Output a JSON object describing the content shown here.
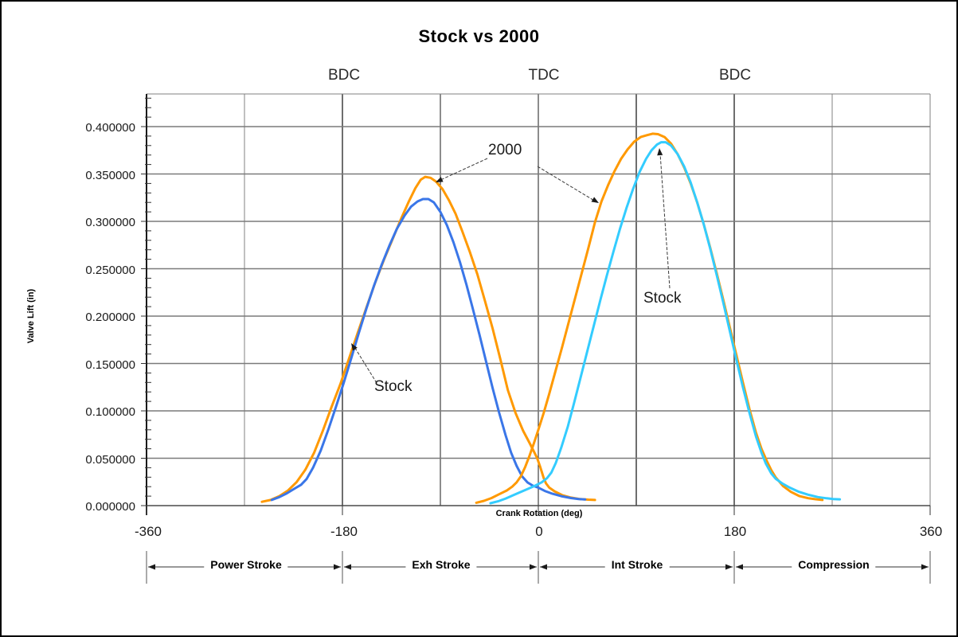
{
  "title": "Stock vs 2000",
  "top_markers": [
    {
      "label": "BDC",
      "deg": -180
    },
    {
      "label": "TDC",
      "deg": 0
    },
    {
      "label": "BDC",
      "deg": 180
    }
  ],
  "y_axis": {
    "title": "Valve Lift (in)",
    "tick_labels": [
      "0.000000",
      "0.050000",
      "0.100000",
      "0.150000",
      "0.200000",
      "0.250000",
      "0.300000",
      "0.350000",
      "0.400000"
    ],
    "major_step": 0.05,
    "minor_step": 0.01
  },
  "x_axis": {
    "title": "Crank Rotation (deg)",
    "tick_labels": [
      "-360",
      "-180",
      "0",
      "180",
      "360"
    ],
    "tick_values": [
      -360,
      -180,
      0,
      180,
      360
    ]
  },
  "stroke_bands": [
    {
      "label": "Power Stroke",
      "from": -360,
      "to": -180
    },
    {
      "label": "Exh Stroke",
      "from": -180,
      "to": 0
    },
    {
      "label": "Int Stroke",
      "from": 0,
      "to": 180
    },
    {
      "label": "Compression",
      "from": 180,
      "to": 360
    }
  ],
  "annotations": {
    "label_2000": "2000",
    "label_stock_exhaust": "Stock",
    "label_stock_intake": "Stock"
  },
  "colors": {
    "series_2000": "#FF9900",
    "series_stock_exhaust": "#3A76E8",
    "series_stock_intake": "#33CCFF",
    "gridline": "#808080",
    "gridline_dark": "#1a1a1a",
    "axis": "#000000",
    "arrow": "#3a3a3a"
  },
  "chart_data": {
    "type": "line",
    "title": "Stock vs 2000",
    "xlabel": "Crank Rotation (deg)",
    "ylabel": "Valve Lift (in)",
    "xlim": [
      -360,
      360
    ],
    "ylim": [
      0,
      0.43
    ],
    "grid": true,
    "x_major_ticks": [
      -360,
      -180,
      0,
      180,
      360
    ],
    "x_gridlines_every_deg": 90,
    "y_gridlines_every": 0.05,
    "series": [
      {
        "name": "2000 (exhaust lobe)",
        "color": "#FF9900",
        "points": [
          [
            -254,
            0.004
          ],
          [
            -246,
            0.006
          ],
          [
            -238,
            0.01
          ],
          [
            -230,
            0.016
          ],
          [
            -222,
            0.025
          ],
          [
            -214,
            0.038
          ],
          [
            -206,
            0.056
          ],
          [
            -198,
            0.079
          ],
          [
            -190,
            0.104
          ],
          [
            -182,
            0.128
          ],
          [
            -174,
            0.155
          ],
          [
            -166,
            0.182
          ],
          [
            -158,
            0.209
          ],
          [
            -150,
            0.235
          ],
          [
            -142,
            0.259
          ],
          [
            -134,
            0.281
          ],
          [
            -126,
            0.303
          ],
          [
            -119,
            0.321
          ],
          [
            -113,
            0.335
          ],
          [
            -108,
            0.344
          ],
          [
            -104,
            0.347
          ],
          [
            -99,
            0.346
          ],
          [
            -94,
            0.342
          ],
          [
            -88,
            0.334
          ],
          [
            -82,
            0.322
          ],
          [
            -76,
            0.308
          ],
          [
            -70,
            0.29
          ],
          [
            -63,
            0.268
          ],
          [
            -56,
            0.244
          ],
          [
            -49,
            0.216
          ],
          [
            -42,
            0.187
          ],
          [
            -35,
            0.155
          ],
          [
            -28,
            0.122
          ],
          [
            -21,
            0.098
          ],
          [
            -14,
            0.079
          ],
          [
            -8,
            0.066
          ],
          [
            -4,
            0.057
          ],
          [
            -1,
            0.05
          ],
          [
            2,
            0.04
          ],
          [
            5,
            0.029
          ],
          [
            7,
            0.0235
          ],
          [
            10,
            0.019
          ],
          [
            15,
            0.015
          ],
          [
            22,
            0.011
          ],
          [
            30,
            0.0085
          ],
          [
            38,
            0.007
          ],
          [
            46,
            0.0063
          ],
          [
            52,
            0.006
          ]
        ]
      },
      {
        "name": "Stock (exhaust lobe)",
        "color": "#3A76E8",
        "points": [
          [
            -245,
            0.006
          ],
          [
            -238,
            0.009
          ],
          [
            -231,
            0.013
          ],
          [
            -224,
            0.018
          ],
          [
            -218,
            0.022
          ],
          [
            -213,
            0.028
          ],
          [
            -207,
            0.04
          ],
          [
            -200,
            0.058
          ],
          [
            -193,
            0.08
          ],
          [
            -186,
            0.104
          ],
          [
            -179,
            0.129
          ],
          [
            -172,
            0.155
          ],
          [
            -165,
            0.182
          ],
          [
            -158,
            0.208
          ],
          [
            -151,
            0.232
          ],
          [
            -144,
            0.254
          ],
          [
            -137,
            0.274
          ],
          [
            -130,
            0.292
          ],
          [
            -123,
            0.306
          ],
          [
            -117,
            0.3155
          ],
          [
            -111,
            0.321
          ],
          [
            -106,
            0.3235
          ],
          [
            -101,
            0.3235
          ],
          [
            -96,
            0.32
          ],
          [
            -90,
            0.31
          ],
          [
            -84,
            0.296
          ],
          [
            -78,
            0.278
          ],
          [
            -72,
            0.257
          ],
          [
            -66,
            0.233
          ],
          [
            -60,
            0.207
          ],
          [
            -54,
            0.18
          ],
          [
            -48,
            0.152
          ],
          [
            -42,
            0.124
          ],
          [
            -36,
            0.098
          ],
          [
            -30,
            0.074
          ],
          [
            -25,
            0.056
          ],
          [
            -20,
            0.042
          ],
          [
            -15,
            0.031
          ],
          [
            -10,
            0.0245
          ],
          [
            -5,
            0.021
          ],
          [
            0,
            0.019
          ],
          [
            6,
            0.0155
          ],
          [
            13,
            0.0125
          ],
          [
            21,
            0.01
          ],
          [
            30,
            0.008
          ],
          [
            37,
            0.007
          ],
          [
            43,
            0.0065
          ]
        ]
      },
      {
        "name": "2000 (intake lobe)",
        "color": "#FF9900",
        "points": [
          [
            -57,
            0.003
          ],
          [
            -50,
            0.005
          ],
          [
            -43,
            0.008
          ],
          [
            -36,
            0.012
          ],
          [
            -29,
            0.016
          ],
          [
            -24,
            0.02
          ],
          [
            -20,
            0.0245
          ],
          [
            -16,
            0.031
          ],
          [
            -12,
            0.041
          ],
          [
            -8,
            0.053
          ],
          [
            -4,
            0.066
          ],
          [
            0,
            0.08
          ],
          [
            5,
            0.098
          ],
          [
            10,
            0.118
          ],
          [
            16,
            0.143
          ],
          [
            22,
            0.168
          ],
          [
            28,
            0.194
          ],
          [
            34,
            0.22
          ],
          [
            40,
            0.246
          ],
          [
            46,
            0.272
          ],
          [
            52,
            0.299
          ],
          [
            58,
            0.321
          ],
          [
            64,
            0.338
          ],
          [
            70,
            0.353
          ],
          [
            76,
            0.366
          ],
          [
            82,
            0.376
          ],
          [
            88,
            0.384
          ],
          [
            94,
            0.389
          ],
          [
            100,
            0.391
          ],
          [
            105,
            0.3925
          ],
          [
            110,
            0.392
          ],
          [
            116,
            0.389
          ],
          [
            122,
            0.382
          ],
          [
            128,
            0.371
          ],
          [
            134,
            0.357
          ],
          [
            140,
            0.34
          ],
          [
            146,
            0.32
          ],
          [
            152,
            0.297
          ],
          [
            158,
            0.272
          ],
          [
            164,
            0.245
          ],
          [
            170,
            0.217
          ],
          [
            176,
            0.188
          ],
          [
            182,
            0.159
          ],
          [
            188,
            0.13
          ],
          [
            194,
            0.102
          ],
          [
            200,
            0.077
          ],
          [
            205,
            0.06
          ],
          [
            210,
            0.047
          ],
          [
            214,
            0.0375
          ],
          [
            218,
            0.03
          ],
          [
            221,
            0.026
          ],
          [
            225,
            0.0205
          ],
          [
            232,
            0.0145
          ],
          [
            240,
            0.01
          ],
          [
            248,
            0.0078
          ],
          [
            255,
            0.0067
          ],
          [
            261,
            0.006
          ]
        ]
      },
      {
        "name": "Stock (intake lobe)",
        "color": "#33CCFF",
        "points": [
          [
            -44,
            0.0025
          ],
          [
            -37,
            0.0045
          ],
          [
            -30,
            0.0075
          ],
          [
            -23,
            0.011
          ],
          [
            -16,
            0.0145
          ],
          [
            -9,
            0.018
          ],
          [
            -3,
            0.021
          ],
          [
            3,
            0.0245
          ],
          [
            8,
            0.029
          ],
          [
            12,
            0.035
          ],
          [
            16,
            0.045
          ],
          [
            21,
            0.061
          ],
          [
            27,
            0.083
          ],
          [
            33,
            0.109
          ],
          [
            39,
            0.136
          ],
          [
            45,
            0.163
          ],
          [
            51,
            0.19
          ],
          [
            57,
            0.217
          ],
          [
            63,
            0.243
          ],
          [
            69,
            0.268
          ],
          [
            75,
            0.292
          ],
          [
            81,
            0.314
          ],
          [
            87,
            0.334
          ],
          [
            93,
            0.352
          ],
          [
            99,
            0.366
          ],
          [
            104,
            0.375
          ],
          [
            109,
            0.381
          ],
          [
            113,
            0.3835
          ],
          [
            117,
            0.3835
          ],
          [
            122,
            0.38
          ],
          [
            128,
            0.371
          ],
          [
            134,
            0.358
          ],
          [
            140,
            0.341
          ],
          [
            146,
            0.32
          ],
          [
            152,
            0.297
          ],
          [
            158,
            0.271
          ],
          [
            164,
            0.243
          ],
          [
            170,
            0.214
          ],
          [
            176,
            0.184
          ],
          [
            182,
            0.154
          ],
          [
            188,
            0.125
          ],
          [
            194,
            0.098
          ],
          [
            200,
            0.073
          ],
          [
            205,
            0.056
          ],
          [
            209,
            0.0445
          ],
          [
            214,
            0.034
          ],
          [
            218,
            0.0285
          ],
          [
            224,
            0.0235
          ],
          [
            231,
            0.019
          ],
          [
            239,
            0.0148
          ],
          [
            248,
            0.0115
          ],
          [
            257,
            0.009
          ],
          [
            265,
            0.0077
          ],
          [
            271,
            0.007
          ],
          [
            277,
            0.0066
          ]
        ]
      }
    ]
  }
}
